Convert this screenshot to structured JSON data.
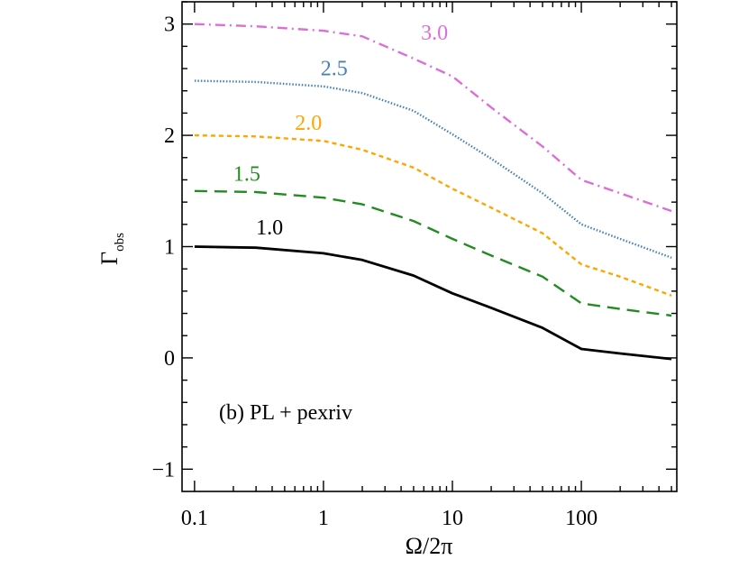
{
  "chart_data": {
    "type": "line",
    "xscale": "log",
    "xlabel": "Ω/2π",
    "ylabel_main": "Γ",
    "ylabel_sub": "obs",
    "xlim": [
      0.08,
      550
    ],
    "ylim": [
      -1.2,
      3.2
    ],
    "xticks": [
      0.1,
      1,
      10,
      100
    ],
    "xtick_labels": [
      "0.1",
      "1",
      "10",
      "100"
    ],
    "yticks": [
      -1,
      0,
      1,
      2,
      3
    ],
    "ytick_labels": [
      "−1",
      "0",
      "1",
      "2",
      "3"
    ],
    "annotation": "(b)  PL + pexriv",
    "series": [
      {
        "name": "1.0",
        "label": "1.0",
        "color": "#000000",
        "dash": "solid",
        "x": [
          0.1,
          0.3,
          1,
          2,
          5,
          10,
          20,
          50,
          100,
          200,
          500
        ],
        "y": [
          1.0,
          0.99,
          0.94,
          0.88,
          0.74,
          0.58,
          0.45,
          0.27,
          0.08,
          0.04,
          -0.01
        ],
        "label_x": 0.3,
        "label_y": 1.11
      },
      {
        "name": "1.5",
        "label": "1.5",
        "color": "#228b22",
        "dash": "long-dash",
        "x": [
          0.1,
          0.3,
          1,
          2,
          5,
          10,
          20,
          50,
          100,
          200,
          500
        ],
        "y": [
          1.5,
          1.49,
          1.44,
          1.38,
          1.23,
          1.07,
          0.92,
          0.73,
          0.49,
          0.44,
          0.38
        ],
        "label_x": 0.2,
        "label_y": 1.59
      },
      {
        "name": "2.0",
        "label": "2.0",
        "color": "#ffa500",
        "dash": "short-dash",
        "x": [
          0.1,
          0.3,
          1,
          2,
          5,
          10,
          20,
          50,
          100,
          200,
          500
        ],
        "y": [
          2.0,
          1.99,
          1.95,
          1.87,
          1.71,
          1.52,
          1.35,
          1.12,
          0.84,
          0.73,
          0.56
        ],
        "label_x": 0.6,
        "label_y": 2.05
      },
      {
        "name": "2.5",
        "label": "2.5",
        "color": "#4682b4",
        "dash": "dotted",
        "x": [
          0.1,
          0.3,
          1,
          2,
          5,
          10,
          20,
          50,
          100,
          200,
          500
        ],
        "y": [
          2.49,
          2.48,
          2.44,
          2.38,
          2.22,
          2.01,
          1.79,
          1.48,
          1.2,
          1.07,
          0.9
        ],
        "label_x": 0.95,
        "label_y": 2.54
      },
      {
        "name": "3.0",
        "label": "3.0",
        "color": "#da70d6",
        "dash": "dash-dot",
        "x": [
          0.1,
          0.3,
          1,
          2,
          5,
          10,
          20,
          50,
          100,
          200,
          500
        ],
        "y": [
          3.0,
          2.98,
          2.94,
          2.89,
          2.69,
          2.53,
          2.25,
          1.9,
          1.6,
          1.48,
          1.32
        ],
        "label_x": 5.7,
        "label_y": 2.86
      }
    ]
  }
}
